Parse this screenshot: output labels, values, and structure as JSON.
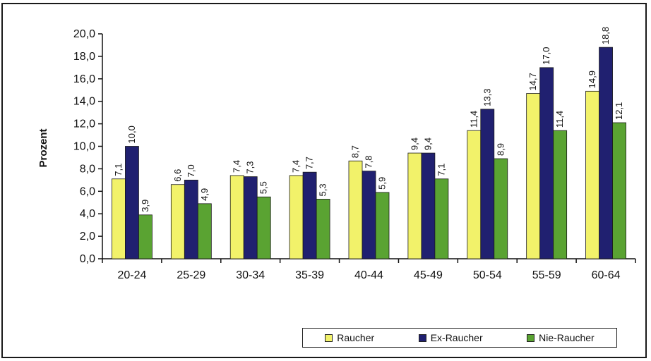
{
  "chart_data": {
    "type": "bar",
    "title": "",
    "xlabel": "",
    "ylabel": "Prozent",
    "ylim": [
      0,
      20
    ],
    "yticks": [
      "0,0",
      "2,0",
      "4,0",
      "6,0",
      "8,0",
      "10,0",
      "12,0",
      "14,0",
      "16,0",
      "18,0",
      "20,0"
    ],
    "categories": [
      "20-24",
      "25-29",
      "30-34",
      "35-39",
      "40-44",
      "45-49",
      "50-54",
      "55-59",
      "60-64"
    ],
    "series": [
      {
        "name": "Raucher",
        "color": "#f2f26a",
        "values": [
          7.1,
          6.6,
          7.4,
          7.4,
          8.7,
          9.4,
          11.4,
          14.7,
          14.9
        ],
        "labels": [
          "7,1",
          "6,6",
          "7,4",
          "7,4",
          "8,7",
          "9,4",
          "11,4",
          "14,7",
          "14,9"
        ]
      },
      {
        "name": "Ex-Raucher",
        "color": "#202070",
        "values": [
          10.0,
          7.0,
          7.3,
          7.7,
          7.8,
          9.4,
          13.3,
          17.0,
          18.8
        ],
        "labels": [
          "10,0",
          "7,0",
          "7,3",
          "7,7",
          "7,8",
          "9,4",
          "13,3",
          "17,0",
          "18,8"
        ]
      },
      {
        "name": "Nie-Raucher",
        "color": "#5aa332",
        "values": [
          3.9,
          4.9,
          5.5,
          5.3,
          5.9,
          7.1,
          8.9,
          11.4,
          12.1
        ],
        "labels": [
          "3,9",
          "4,9",
          "5,5",
          "5,3",
          "5,9",
          "7,1",
          "8,9",
          "11,4",
          "12,1"
        ]
      }
    ],
    "grid": false,
    "legend_position": "bottom-right"
  }
}
